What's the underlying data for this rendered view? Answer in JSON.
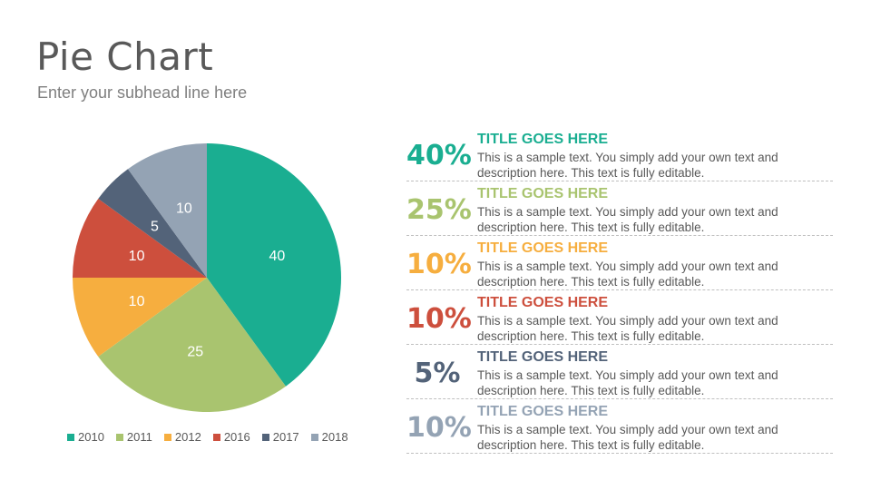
{
  "header": {
    "title": "Pie Chart",
    "subtitle": "Enter your subhead line here"
  },
  "chart_data": {
    "type": "pie",
    "categories": [
      "2010",
      "2011",
      "2012",
      "2016",
      "2017",
      "2018"
    ],
    "values": [
      40,
      25,
      10,
      10,
      5,
      10
    ],
    "colors": [
      "#1aae91",
      "#a9c46f",
      "#f6ae3f",
      "#cd4f3d",
      "#536379",
      "#94a3b4"
    ],
    "data_labels": [
      "40",
      "25",
      "10",
      "10",
      "5",
      "10"
    ],
    "legend_position": "bottom",
    "start_angle_deg": 0,
    "direction": "clockwise"
  },
  "cards": [
    {
      "percent": "40%",
      "title": "TITLE GOES HERE",
      "description": "This is a sample text. You simply add your own text and description here. This text is fully editable.",
      "color": "#1aae91"
    },
    {
      "percent": "25%",
      "title": "TITLE GOES HERE",
      "description": "This is a sample text. You simply add your own text and description here. This text is fully editable.",
      "color": "#a9c46f"
    },
    {
      "percent": "10%",
      "title": "TITLE GOES HERE",
      "description": "This is a sample text. You simply add your own text and description here. This text is fully editable.",
      "color": "#f6ae3f"
    },
    {
      "percent": "10%",
      "title": "TITLE GOES HERE",
      "description": "This is a sample text. You simply add your own text and description here. This text is fully editable.",
      "color": "#cd4f3d"
    },
    {
      "percent": "5%",
      "title": "TITLE GOES HERE",
      "description": "This is a sample text. You simply add your own text and description here. This text is fully editable.",
      "color": "#536379"
    },
    {
      "percent": "10%",
      "title": "TITLE GOES HERE",
      "description": "This is a sample text. You simply add your own text and description here. This text is fully editable.",
      "color": "#94a3b4"
    }
  ]
}
